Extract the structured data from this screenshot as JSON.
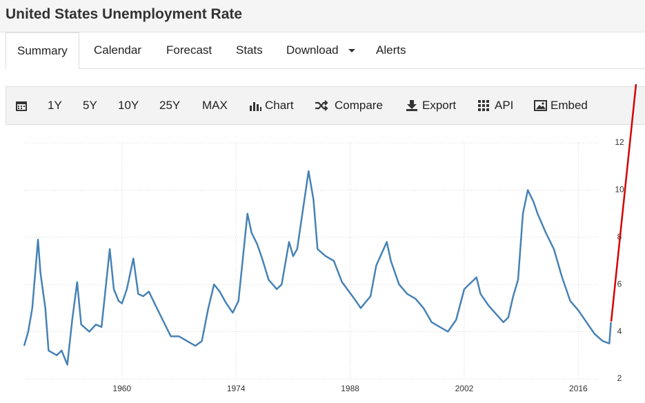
{
  "header": {
    "title": "United States Unemployment Rate"
  },
  "tabs": [
    "Summary",
    "Calendar",
    "Forecast",
    "Stats",
    "Download",
    "Alerts"
  ],
  "toolbar": [
    "1Y",
    "5Y",
    "10Y",
    "25Y",
    "MAX",
    "Chart",
    "Compare",
    "Export",
    "API",
    "Embed"
  ],
  "chart_data": {
    "type": "line",
    "x": [
      1948,
      1948.5,
      1949,
      1949.7,
      1950,
      1950.6,
      1951,
      1952,
      1952.6,
      1953.3,
      1953.9,
      1954.5,
      1955,
      1956,
      1956.8,
      1957.5,
      1958.5,
      1959,
      1959.6,
      1960,
      1960.6,
      1961.4,
      1962,
      1962.6,
      1963.3,
      1964,
      1965,
      1966,
      1967,
      1968,
      1969,
      1969.8,
      1970.6,
      1971.3,
      1972,
      1972.8,
      1973.6,
      1974.3,
      1975.4,
      1975.9,
      1976.6,
      1977.2,
      1978,
      1979,
      1979.6,
      1980.5,
      1981,
      1981.5,
      1982.9,
      1983.5,
      1984,
      1985,
      1986,
      1987,
      1988.5,
      1989.3,
      1990.5,
      1991.2,
      1992.5,
      1993,
      1994,
      1995,
      1996,
      1997,
      1998,
      1999,
      2000,
      2001,
      2002,
      2003.5,
      2004,
      2005,
      2006.8,
      2007.4,
      2008,
      2008.6,
      2009.2,
      2009.8,
      2010.5,
      2011,
      2012,
      2013,
      2014,
      2015,
      2016,
      2017,
      2018,
      2019,
      2019.8,
      2020
    ],
    "series": [
      {
        "color": "#4682b4",
        "values": [
          3.4,
          4.0,
          5.0,
          7.9,
          6.5,
          5.0,
          3.2,
          3.0,
          3.2,
          2.6,
          4.5,
          6.1,
          4.3,
          4.0,
          4.3,
          4.2,
          7.5,
          5.8,
          5.3,
          5.2,
          5.8,
          7.1,
          5.6,
          5.5,
          5.7,
          5.2,
          4.5,
          3.8,
          3.8,
          3.6,
          3.4,
          3.6,
          5.0,
          6.0,
          5.7,
          5.2,
          4.8,
          5.3,
          9.0,
          8.2,
          7.7,
          7.1,
          6.2,
          5.8,
          6.0,
          7.8,
          7.2,
          7.5,
          10.8,
          9.6,
          7.5,
          7.2,
          7.0,
          6.1,
          5.4,
          5.0,
          5.5,
          6.8,
          7.8,
          7.0,
          6.0,
          5.6,
          5.4,
          5.0,
          4.4,
          4.2,
          4.0,
          4.5,
          5.8,
          6.3,
          5.6,
          5.1,
          4.4,
          4.6,
          5.5,
          6.2,
          9.0,
          10.0,
          9.5,
          9.0,
          8.2,
          7.5,
          6.3,
          5.3,
          4.9,
          4.4,
          3.9,
          3.6,
          3.5,
          4.4
        ]
      }
    ],
    "xlim": [
      1948,
      2020.2
    ],
    "ylim": [
      2,
      12
    ],
    "xticks": [
      1960,
      1974,
      1988,
      2002,
      2016
    ],
    "yticks": [
      2,
      4,
      6,
      8,
      10,
      12
    ],
    "grid": true
  }
}
